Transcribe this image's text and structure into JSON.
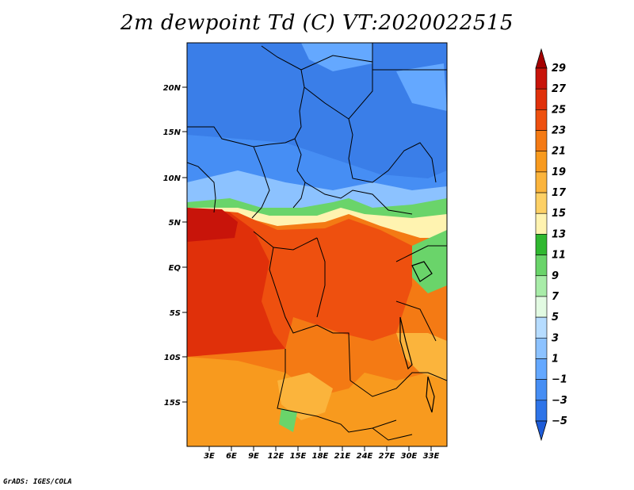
{
  "title": "2m dewpoint Td (C) VT:2020022515",
  "credit": "GrADS: IGES/COLA",
  "y_ticks": [
    "20N",
    "15N",
    "10N",
    "5N",
    "EQ",
    "5S",
    "10S",
    "15S"
  ],
  "x_ticks": [
    "3E",
    "6E",
    "9E",
    "12E",
    "15E",
    "18E",
    "21E",
    "24E",
    "27E",
    "30E",
    "33E"
  ],
  "colorbar": {
    "labels": [
      "29",
      "27",
      "25",
      "23",
      "21",
      "19",
      "17",
      "15",
      "13",
      "11",
      "9",
      "7",
      "5",
      "3",
      "1",
      "−1",
      "−3",
      "−5"
    ],
    "colors": [
      "#a50000",
      "#c8140a",
      "#e0300a",
      "#ee500f",
      "#f47a14",
      "#f89a1e",
      "#fbb43c",
      "#fdd065",
      "#fff3b0",
      "#30b830",
      "#6ad46a",
      "#a8eca8",
      "#e2fae2",
      "#b6dcff",
      "#8cc2ff",
      "#64a8ff",
      "#468ef4",
      "#2e74e8",
      "#1e5cd8"
    ]
  },
  "legend_colors": {
    "dry_north": "#3a7ee8",
    "very_dry": "#2a64d8",
    "moist_band": "#a8eca8",
    "warm_coast": "#e0300a",
    "hot_core": "#c8140a",
    "southern_warm": "#f89a1e"
  }
}
